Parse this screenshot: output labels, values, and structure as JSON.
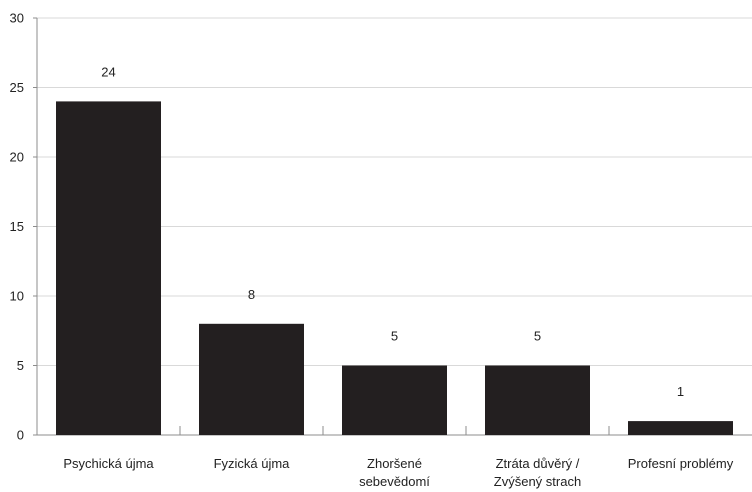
{
  "chart_data": {
    "type": "bar",
    "categories": [
      [
        "Psychická újma"
      ],
      [
        "Fyzická újma"
      ],
      [
        "Zhoršené",
        "sebevědomí"
      ],
      [
        "Ztráta důvěrý /",
        "Zvýšený strach"
      ],
      [
        "Profesní problémy"
      ]
    ],
    "values": [
      24,
      8,
      5,
      5,
      1
    ],
    "data_labels": [
      "24",
      "8",
      "5",
      "5",
      "1"
    ],
    "y_ticks": [
      "0",
      "5",
      "10",
      "15",
      "20",
      "25",
      "30"
    ],
    "ylim": [
      0,
      30
    ],
    "grid": true,
    "legend": "none",
    "colors": {
      "bar": "#231f20",
      "grid": "#d9d9d9",
      "axis": "#8c8c8c"
    }
  }
}
